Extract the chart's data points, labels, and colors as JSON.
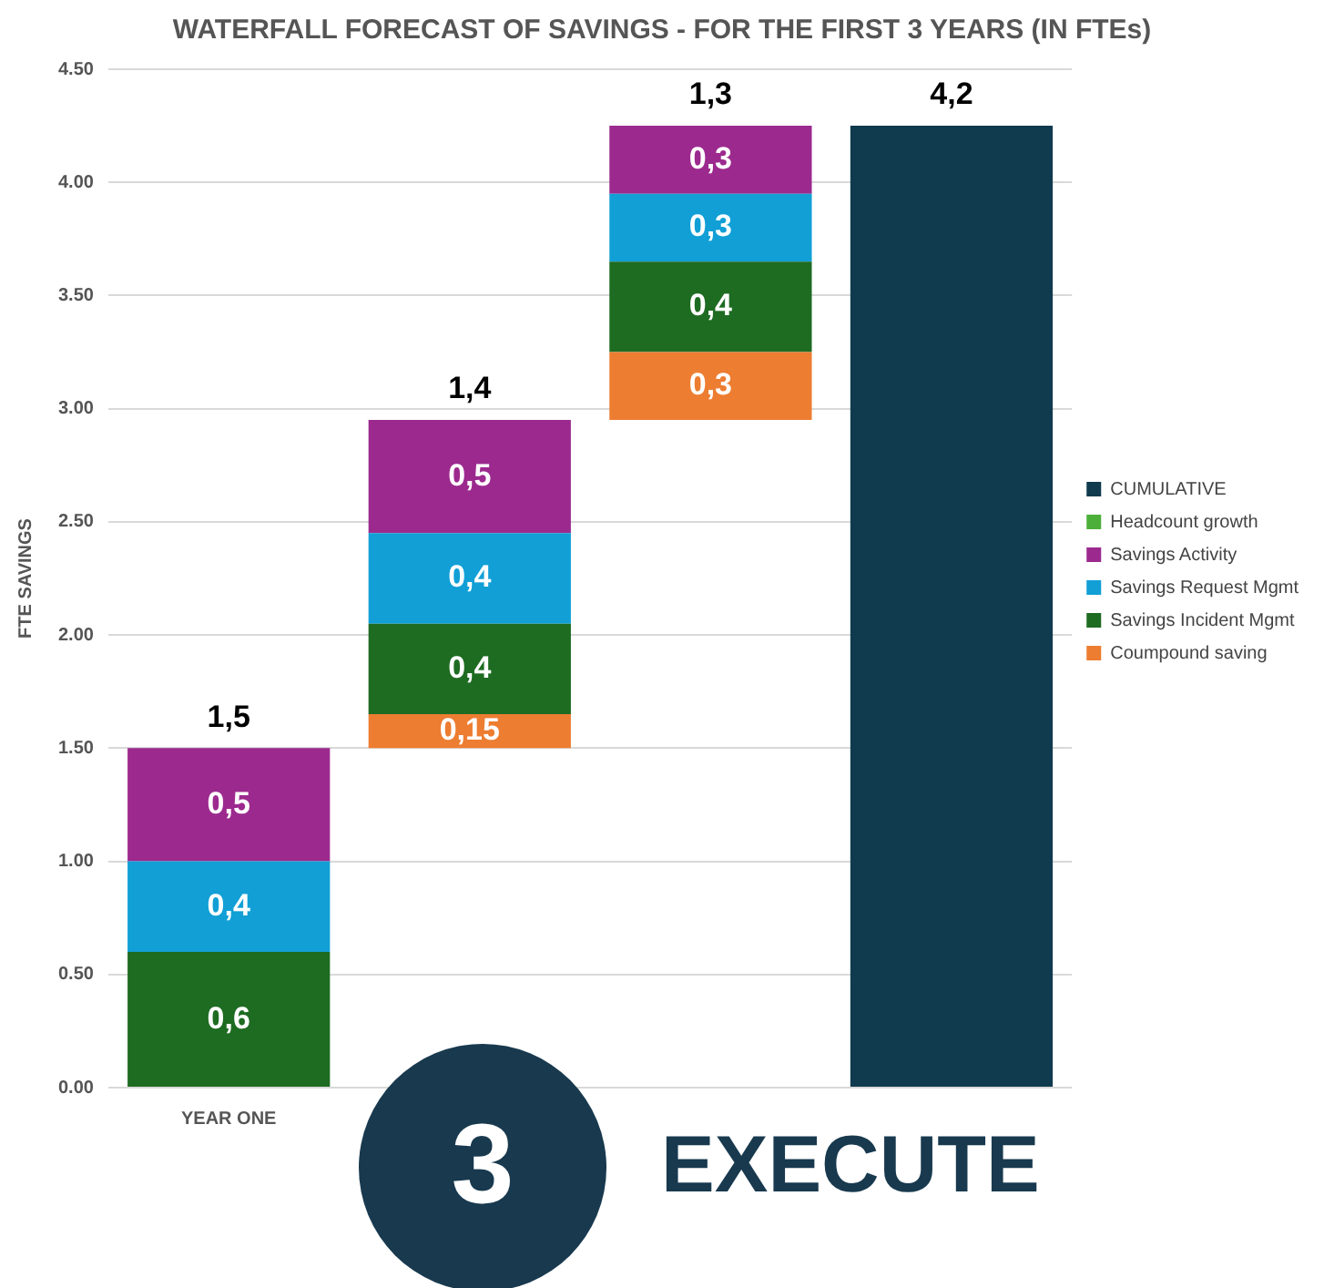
{
  "chart_data": {
    "type": "bar",
    "title": "WATERFALL FORECAST OF SAVINGS - FOR THE FIRST 3 YEARS (IN FTEs)",
    "ylabel": "FTE SAVINGS",
    "categories": [
      "YEAR ONE",
      null,
      null,
      null
    ],
    "series": [
      {
        "name": "Coumpound saving",
        "color": "#ed7d31",
        "base": [
          null,
          1.5,
          2.95,
          null
        ],
        "values": [
          null,
          0.15,
          0.3,
          null
        ],
        "value_labels": [
          null,
          "0,15",
          "0,3",
          null
        ]
      },
      {
        "name": "Savings Incident Mgmt",
        "color": "#1e6b22",
        "base": [
          0,
          1.65,
          3.25,
          null
        ],
        "values": [
          0.6,
          0.4,
          0.4,
          null
        ],
        "value_labels": [
          "0,6",
          "0,4",
          "0,4",
          null
        ]
      },
      {
        "name": "Savings Request Mgmt",
        "color": "#119fd6",
        "base": [
          0.6,
          2.05,
          3.65,
          null
        ],
        "values": [
          0.4,
          0.4,
          0.3,
          null
        ],
        "value_labels": [
          "0,4",
          "0,4",
          "0,3",
          null
        ]
      },
      {
        "name": "Savings Activity",
        "color": "#9c2a8e",
        "base": [
          1,
          2.45,
          3.95,
          null
        ],
        "values": [
          0.5,
          0.5,
          0.3,
          null
        ],
        "value_labels": [
          "0,5",
          "0,5",
          "0,3",
          null
        ]
      },
      {
        "name": "Headcount growth",
        "color": "#4caf3a",
        "values": [
          null,
          null,
          null,
          null
        ]
      },
      {
        "name": "CUMULATIVE",
        "color": "#103a4e",
        "base": [
          null,
          null,
          null,
          0
        ],
        "values": [
          null,
          null,
          null,
          4.25
        ]
      }
    ],
    "totals": [
      "1,5",
      "1,4",
      "1,3",
      "4,2"
    ],
    "ylim": [
      0,
      4.5
    ],
    "yticks": [
      {
        "value": 0,
        "label": "0.00"
      },
      {
        "value": 0.5,
        "label": "0.50"
      },
      {
        "value": 1,
        "label": "1.00"
      },
      {
        "value": 1.5,
        "label": "1.50"
      },
      {
        "value": 2,
        "label": "2.00"
      },
      {
        "value": 2.5,
        "label": "2.50"
      },
      {
        "value": 3,
        "label": "3.00"
      },
      {
        "value": 3.5,
        "label": "3.50"
      },
      {
        "value": 4,
        "label": "4.00"
      },
      {
        "value": 4.5,
        "label": "4.50"
      }
    ],
    "grid": "y",
    "legend": "right",
    "annotations": [
      "3",
      "EXECUTE"
    ]
  }
}
